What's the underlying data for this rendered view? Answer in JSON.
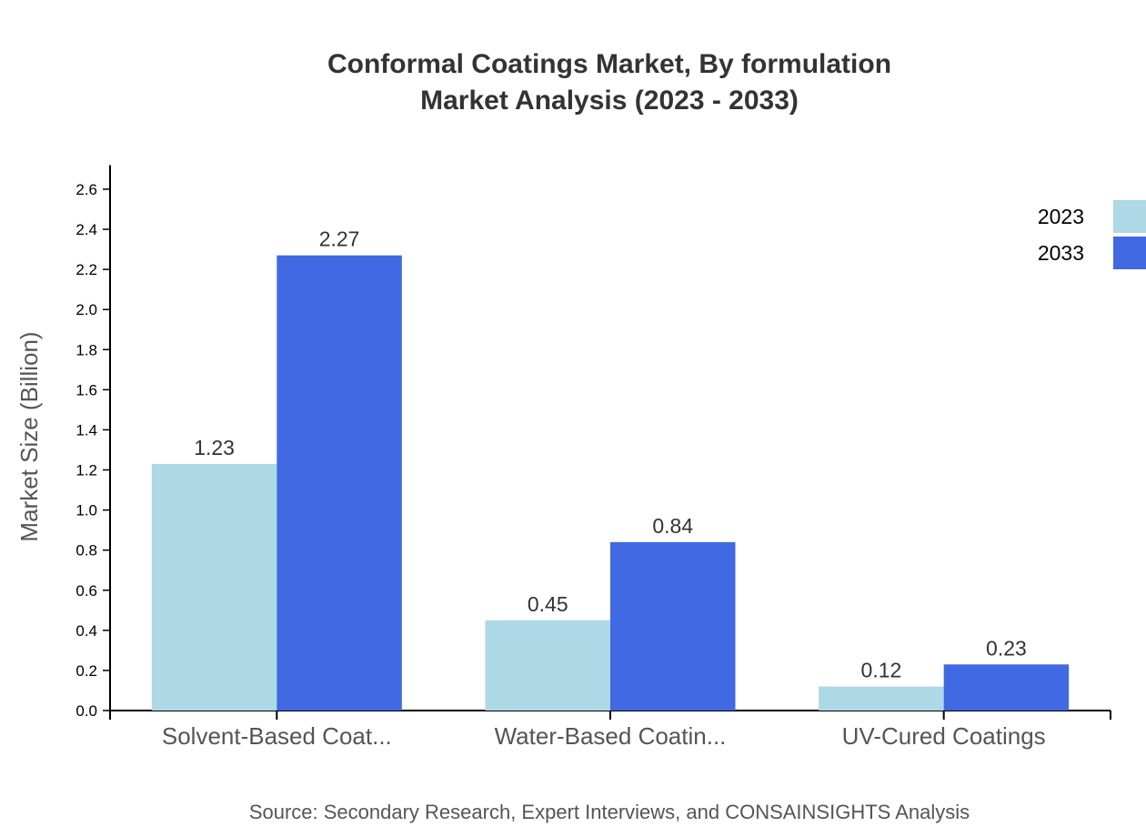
{
  "chart_data": {
    "type": "bar",
    "title": "Conformal Coatings Market, By formulation",
    "subtitle": "Market Analysis (2023 - 2033)",
    "xlabel": "",
    "ylabel": "Market Size (Billion)",
    "ylim": [
      0,
      2.72
    ],
    "yticks": [
      "0.0",
      "0.2",
      "0.4",
      "0.6",
      "0.8",
      "1.0",
      "1.2",
      "1.4",
      "1.6",
      "1.8",
      "2.0",
      "2.2",
      "2.4",
      "2.6"
    ],
    "categories": [
      "Solvent-Based Coat...",
      "Water-Based Coatin...",
      "UV-Cured Coatings"
    ],
    "series": [
      {
        "name": "2023",
        "color": "#add8e6",
        "values": [
          1.23,
          0.45,
          0.12
        ]
      },
      {
        "name": "2033",
        "color": "#4169e1",
        "values": [
          2.27,
          0.84,
          0.23
        ]
      }
    ],
    "legend": "top-right",
    "grid": false,
    "source": "Source: Secondary Research, Expert Interviews, and CONSAINSIGHTS Analysis"
  }
}
